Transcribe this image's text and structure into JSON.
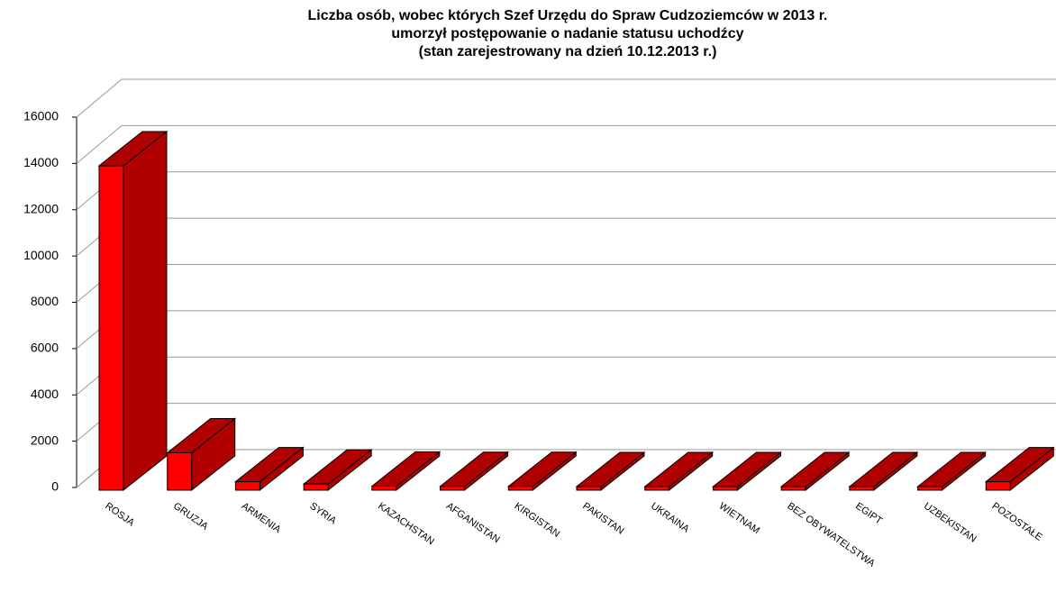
{
  "chart_data": {
    "type": "bar",
    "title": [
      "Liczba osób, wobec których Szef Urzędu do Spraw Cudzoziemców w 2013 r.",
      "umorzył postępowanie o nadanie statusu uchodźcy",
      "(stan zarejestrowany na dzień 10.12.2013 r.)"
    ],
    "categories": [
      "ROSJA",
      "GRUZJA",
      "ARMENIA",
      "SYRIA",
      "KAZACHSTAN",
      "AFGANISTAN",
      "KIRGISTAN",
      "PAKISTAN",
      "UKRAINA",
      "WIETNAM",
      "BEZ OBYWATELSTWA",
      "EGIPT",
      "UZBEKISTAN",
      "POZOSTAŁE"
    ],
    "values": [
      13900,
      1500,
      250,
      150,
      60,
      50,
      50,
      40,
      40,
      40,
      40,
      40,
      40,
      250
    ],
    "color": "#ff0000",
    "side_color": "#b00000",
    "ylim": [
      0,
      16000
    ],
    "yticks": [
      0,
      2000,
      4000,
      6000,
      8000,
      10000,
      12000,
      14000,
      16000
    ],
    "grid": true
  }
}
